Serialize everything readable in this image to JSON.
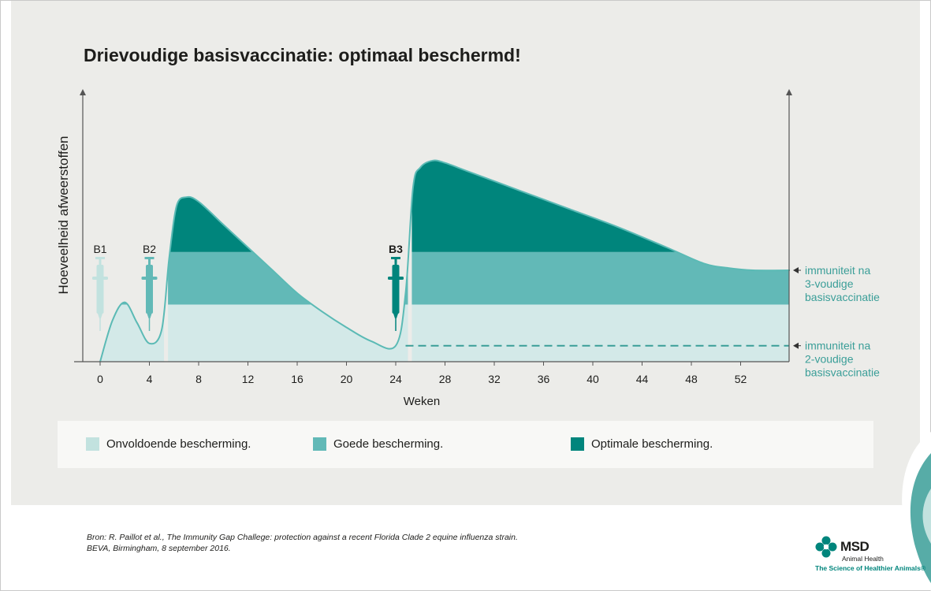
{
  "title": "Drievoudige basisvaccinatie: optimaal beschermd!",
  "colors": {
    "panel": "#ecece9",
    "insufficient": "#d3e9e8",
    "good": "#62b9b7",
    "optimal": "#00857c",
    "line": "#5bbab5",
    "accent_teal": "#3a9e98",
    "text": "#1d1d1b",
    "syringe_b1": "#c2e2df",
    "syringe_b2": "#62b9b7",
    "syringe_b3": "#00857c"
  },
  "chart_data": {
    "type": "area",
    "title": "Drievoudige basisvaccinatie: optimaal beschermd!",
    "xlabel": "Weken",
    "ylabel": "Hoeveelheid afweerstoffen",
    "xlim": [
      -2,
      56
    ],
    "ylim": [
      0,
      100
    ],
    "x_ticks": [
      0,
      4,
      8,
      12,
      16,
      20,
      24,
      28,
      32,
      36,
      40,
      44,
      48,
      52
    ],
    "y_ticks": [],
    "grid": false,
    "levels": {
      "good_threshold": 25,
      "optimal_threshold": 48,
      "two_dose_immunity": 7,
      "three_dose_immunity": 40
    },
    "curve": {
      "x": [
        0,
        1.0,
        2.0,
        3.0,
        4.0,
        5.0,
        5.6,
        6.2,
        7.0,
        8.0,
        10.0,
        12.0,
        14.0,
        16.0,
        18.0,
        20.0,
        22.0,
        24.0,
        24.8,
        25.4,
        26.0,
        27.0,
        28.0,
        30.0,
        34.0,
        38.0,
        42.0,
        46.0,
        49.0,
        51.0,
        53.0,
        56.0
      ],
      "y": [
        0,
        18,
        26,
        17,
        8,
        14,
        45,
        68,
        72,
        70,
        60,
        50,
        40,
        30,
        22,
        15,
        9,
        7,
        30,
        76,
        85,
        88,
        87,
        83,
        75,
        67,
        59,
        50,
        43,
        41,
        40,
        40
      ]
    },
    "vaccinations": [
      {
        "label": "B1",
        "week": 0,
        "bold": false
      },
      {
        "label": "B2",
        "week": 4,
        "bold": false
      },
      {
        "label": "B3",
        "week": 24,
        "bold": true
      }
    ],
    "annotations": [
      {
        "text": [
          "immuniteit na",
          "3-voudige",
          "basisvaccinatie"
        ],
        "level": 40
      },
      {
        "text": [
          "immuniteit na",
          "2-voudige",
          "basisvaccinatie"
        ],
        "level": 7
      }
    ],
    "legend": [
      "Onvoldoende bescherming.",
      "Goede bescherming.",
      "Optimale bescherming."
    ]
  },
  "legend": {
    "insufficient": "Onvoldoende bescherming.",
    "good": "Goede bescherming.",
    "optimal": "Optimale bescherming."
  },
  "source": {
    "line1": "Bron: R. Paillot et al., The Immunity Gap Challege: protection against a recent Florida Clade 2 equine influenza strain.",
    "line2": "BEVA, Birmingham, 8 september 2016."
  },
  "brand": {
    "name": "MSD",
    "sub": "Animal Health",
    "tagline": "The Science of Healthier Animals®"
  }
}
